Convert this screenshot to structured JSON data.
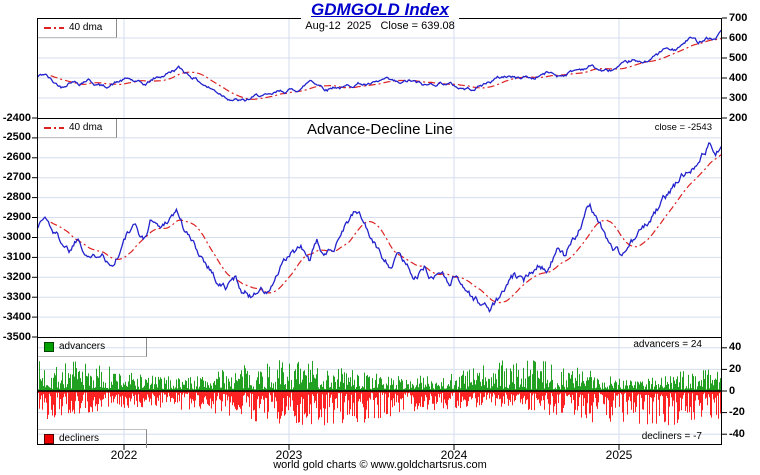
{
  "title": {
    "text": "GDMGOLD Index"
  },
  "subtitle": "Aug-12  2025   Close = 639.08",
  "footer": "world gold charts © www.goldchartsrus.com",
  "labels": {
    "dma": "40 dma",
    "advancers": "advancers",
    "decliners": "decliners",
    "close_annotation": "close = -2543",
    "advancers_annotation": "advancers = 24",
    "decliners_annotation": "decliners = -7",
    "middle_panel_title": "Advance-Decline Line"
  },
  "colors": {
    "title": "#0000cc",
    "price_line": "#2222cc",
    "dma_line": "#dd2222",
    "ad_line": "#2222cc",
    "advancers": "#22a022",
    "advancers_legend": "#00a000",
    "decliners": "#ff2222",
    "decliners_legend": "#ee0000",
    "grid": "#d4deee",
    "axis": "#000000"
  },
  "x_axis": {
    "range": [
      2021.473,
      2025.624
    ],
    "ticks": [
      2022,
      2023,
      2024,
      2025
    ],
    "tick_labels": [
      "2022",
      "2023",
      "2024",
      "2025"
    ]
  },
  "chart_data": [
    {
      "type": "line",
      "panel": "top",
      "title": "GDMGOLD Index",
      "annotation": "Aug-12 2025 Close = 639.08",
      "close": 639.08,
      "ylim": [
        200,
        700
      ],
      "yticks": [
        700,
        600,
        500,
        400,
        300,
        200
      ],
      "ytick_side": "right",
      "grid": true,
      "series": [
        {
          "name": "GDMGOLD Index",
          "color": "#2222cc",
          "noise_amp": 14,
          "seed": 42,
          "keypoints": [
            [
              2021.473,
              405
            ],
            [
              2021.52,
              420
            ],
            [
              2021.57,
              380
            ],
            [
              2021.62,
              355
            ],
            [
              2021.68,
              390
            ],
            [
              2021.73,
              375
            ],
            [
              2021.78,
              395
            ],
            [
              2021.83,
              370
            ],
            [
              2021.88,
              355
            ],
            [
              2021.93,
              370
            ],
            [
              2021.98,
              385
            ],
            [
              2022.03,
              395
            ],
            [
              2022.08,
              375
            ],
            [
              2022.13,
              365
            ],
            [
              2022.18,
              395
            ],
            [
              2022.23,
              410
            ],
            [
              2022.28,
              430
            ],
            [
              2022.33,
              450
            ],
            [
              2022.38,
              425
            ],
            [
              2022.43,
              400
            ],
            [
              2022.48,
              370
            ],
            [
              2022.53,
              345
            ],
            [
              2022.58,
              325
            ],
            [
              2022.63,
              305
            ],
            [
              2022.68,
              290
            ],
            [
              2022.73,
              282
            ],
            [
              2022.78,
              300
            ],
            [
              2022.83,
              315
            ],
            [
              2022.88,
              305
            ],
            [
              2022.93,
              325
            ],
            [
              2022.98,
              335
            ],
            [
              2023.03,
              340
            ],
            [
              2023.08,
              350
            ],
            [
              2023.13,
              390
            ],
            [
              2023.18,
              370
            ],
            [
              2023.23,
              345
            ],
            [
              2023.28,
              360
            ],
            [
              2023.33,
              350
            ],
            [
              2023.38,
              365
            ],
            [
              2023.43,
              375
            ],
            [
              2023.48,
              365
            ],
            [
              2023.53,
              372
            ],
            [
              2023.58,
              390
            ],
            [
              2023.63,
              378
            ],
            [
              2023.68,
              368
            ],
            [
              2023.73,
              385
            ],
            [
              2023.78,
              372
            ],
            [
              2023.83,
              360
            ],
            [
              2023.88,
              372
            ],
            [
              2023.93,
              378
            ],
            [
              2023.98,
              368
            ],
            [
              2024.03,
              352
            ],
            [
              2024.08,
              345
            ],
            [
              2024.13,
              352
            ],
            [
              2024.18,
              368
            ],
            [
              2024.23,
              388
            ],
            [
              2024.28,
              402
            ],
            [
              2024.33,
              412
            ],
            [
              2024.38,
              398
            ],
            [
              2024.43,
              408
            ],
            [
              2024.48,
              398
            ],
            [
              2024.53,
              418
            ],
            [
              2024.58,
              428
            ],
            [
              2024.63,
              412
            ],
            [
              2024.68,
              422
            ],
            [
              2024.73,
              438
            ],
            [
              2024.78,
              448
            ],
            [
              2024.83,
              462
            ],
            [
              2024.88,
              440
            ],
            [
              2024.93,
              432
            ],
            [
              2024.98,
              445
            ],
            [
              2025.03,
              460
            ],
            [
              2025.08,
              485
            ],
            [
              2025.13,
              470
            ],
            [
              2025.18,
              495
            ],
            [
              2025.23,
              515
            ],
            [
              2025.28,
              545
            ],
            [
              2025.33,
              535
            ],
            [
              2025.38,
              560
            ],
            [
              2025.43,
              600
            ],
            [
              2025.48,
              580
            ],
            [
              2025.53,
              608
            ],
            [
              2025.58,
              595
            ],
            [
              2025.62,
              639.08
            ]
          ]
        },
        {
          "name": "40 dma",
          "color": "#dd2222",
          "style": "dash-dot",
          "derived": "40-period moving average of GDMGOLD Index"
        }
      ]
    },
    {
      "type": "line",
      "panel": "middle",
      "title": "Advance-Decline Line",
      "annotation": "close = -2543",
      "close": -2543,
      "ylim": [
        -3500,
        -2400
      ],
      "yticks": [
        -2400,
        -2500,
        -2600,
        -2700,
        -2800,
        -2900,
        -3000,
        -3100,
        -3200,
        -3300,
        -3400,
        -3500
      ],
      "ytick_side": "left",
      "grid": true,
      "series": [
        {
          "name": "Advance-Decline Line",
          "color": "#2222cc",
          "noise_amp": 30,
          "seed": 1337,
          "keypoints": [
            [
              2021.473,
              -2940
            ],
            [
              2021.52,
              -2895
            ],
            [
              2021.57,
              -2965
            ],
            [
              2021.62,
              -3015
            ],
            [
              2021.67,
              -3060
            ],
            [
              2021.72,
              -2995
            ],
            [
              2021.77,
              -3065
            ],
            [
              2021.82,
              -3105
            ],
            [
              2021.87,
              -3050
            ],
            [
              2021.92,
              -3140
            ],
            [
              2021.97,
              -3075
            ],
            [
              2022.02,
              -2985
            ],
            [
              2022.07,
              -2955
            ],
            [
              2022.12,
              -3015
            ],
            [
              2022.17,
              -2900
            ],
            [
              2022.22,
              -2955
            ],
            [
              2022.27,
              -2900
            ],
            [
              2022.32,
              -2862
            ],
            [
              2022.37,
              -2965
            ],
            [
              2022.42,
              -3035
            ],
            [
              2022.47,
              -3095
            ],
            [
              2022.52,
              -3145
            ],
            [
              2022.57,
              -3225
            ],
            [
              2022.62,
              -3255
            ],
            [
              2022.67,
              -3205
            ],
            [
              2022.72,
              -3265
            ],
            [
              2022.77,
              -3295
            ],
            [
              2022.82,
              -3245
            ],
            [
              2022.87,
              -3285
            ],
            [
              2022.92,
              -3205
            ],
            [
              2022.97,
              -3135
            ],
            [
              2023.02,
              -3085
            ],
            [
              2023.07,
              -3055
            ],
            [
              2023.12,
              -3115
            ],
            [
              2023.17,
              -3035
            ],
            [
              2023.22,
              -3095
            ],
            [
              2023.27,
              -3045
            ],
            [
              2023.32,
              -2955
            ],
            [
              2023.37,
              -2895
            ],
            [
              2023.42,
              -2870
            ],
            [
              2023.47,
              -2955
            ],
            [
              2023.52,
              -3040
            ],
            [
              2023.57,
              -3095
            ],
            [
              2023.62,
              -3135
            ],
            [
              2023.67,
              -3085
            ],
            [
              2023.72,
              -3145
            ],
            [
              2023.77,
              -3195
            ],
            [
              2023.82,
              -3155
            ],
            [
              2023.87,
              -3205
            ],
            [
              2023.92,
              -3165
            ],
            [
              2023.97,
              -3215
            ],
            [
              2024.02,
              -3185
            ],
            [
              2024.07,
              -3255
            ],
            [
              2024.12,
              -3305
            ],
            [
              2024.17,
              -3340
            ],
            [
              2024.22,
              -3360
            ],
            [
              2024.27,
              -3310
            ],
            [
              2024.32,
              -3250
            ],
            [
              2024.37,
              -3195
            ],
            [
              2024.42,
              -3240
            ],
            [
              2024.47,
              -3160
            ],
            [
              2024.52,
              -3120
            ],
            [
              2024.57,
              -3155
            ],
            [
              2024.62,
              -3060
            ],
            [
              2024.67,
              -3110
            ],
            [
              2024.72,
              -3000
            ],
            [
              2024.77,
              -2940
            ],
            [
              2024.82,
              -2845
            ],
            [
              2024.87,
              -2895
            ],
            [
              2024.92,
              -2995
            ],
            [
              2024.97,
              -3060
            ],
            [
              2025.02,
              -3085
            ],
            [
              2025.07,
              -3030
            ],
            [
              2025.12,
              -2985
            ],
            [
              2025.17,
              -2935
            ],
            [
              2025.22,
              -2875
            ],
            [
              2025.27,
              -2815
            ],
            [
              2025.32,
              -2760
            ],
            [
              2025.37,
              -2705
            ],
            [
              2025.42,
              -2660
            ],
            [
              2025.47,
              -2610
            ],
            [
              2025.52,
              -2565
            ],
            [
              2025.55,
              -2525
            ],
            [
              2025.58,
              -2585
            ],
            [
              2025.62,
              -2543
            ]
          ]
        },
        {
          "name": "40 dma",
          "color": "#dd2222",
          "style": "dash-dot",
          "derived": "40-period moving average of Advance-Decline Line"
        }
      ]
    },
    {
      "type": "bar",
      "panel": "bottom",
      "ylim": [
        -50,
        50
      ],
      "yticks": [
        40,
        20,
        0,
        -20,
        -40
      ],
      "ytick_side": "right",
      "grid": true,
      "series": [
        {
          "name": "advancers",
          "color": "#22a022",
          "sign": "positive",
          "typical_range": [
            1,
            30
          ],
          "last_value": 24,
          "seed": 7
        },
        {
          "name": "decliners",
          "color": "#ff2222",
          "sign": "negative",
          "typical_range": [
            -1,
            -34
          ],
          "last_value": -7,
          "seed": 7
        }
      ],
      "note": "daily count bars around zero line"
    }
  ]
}
